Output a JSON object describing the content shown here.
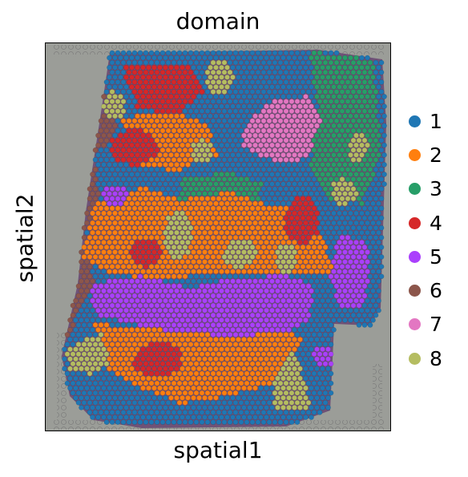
{
  "chart_data": {
    "type": "scatter",
    "title": "domain",
    "xlabel": "spatial1",
    "ylabel": "spatial2",
    "grid": false,
    "legend_position": "right",
    "background": "tissue-histology-image",
    "legend": [
      {
        "label": "1",
        "color": "#1f77b4"
      },
      {
        "label": "2",
        "color": "#ff7f0e"
      },
      {
        "label": "3",
        "color": "#279e68"
      },
      {
        "label": "4",
        "color": "#d62728"
      },
      {
        "label": "5",
        "color": "#aa40fc"
      },
      {
        "label": "6",
        "color": "#8c564b"
      },
      {
        "label": "7",
        "color": "#e377c2"
      },
      {
        "label": "8",
        "color": "#b5bd61"
      }
    ]
  }
}
